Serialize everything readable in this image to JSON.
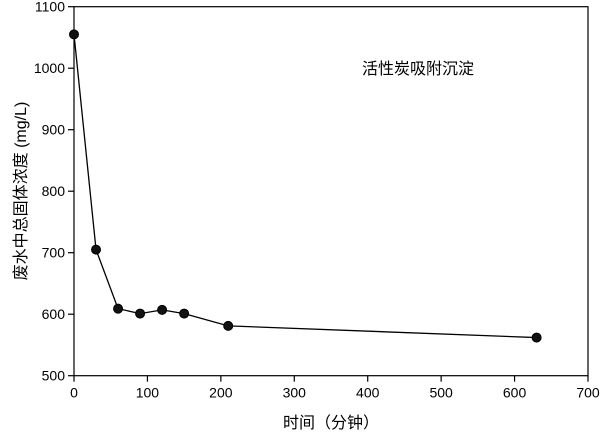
{
  "chart_data": {
    "type": "line",
    "title": "",
    "annotation": "活性炭吸附沉淀",
    "xlabel": "时间（分钟）",
    "ylabel": "废水中总固体浓度 (mg/L)",
    "xlim": [
      0,
      700
    ],
    "ylim": [
      500,
      1100
    ],
    "xticks": [
      0,
      100,
      200,
      300,
      400,
      500,
      600,
      700
    ],
    "yticks": [
      500,
      600,
      700,
      800,
      900,
      1000,
      1100
    ],
    "grid": false,
    "marker": "filled-circle",
    "series": [
      {
        "x": [
          0,
          30,
          60,
          90,
          120,
          150,
          210,
          630
        ],
        "y": [
          1055,
          705,
          609,
          601,
          607,
          601,
          581,
          562
        ]
      }
    ]
  }
}
